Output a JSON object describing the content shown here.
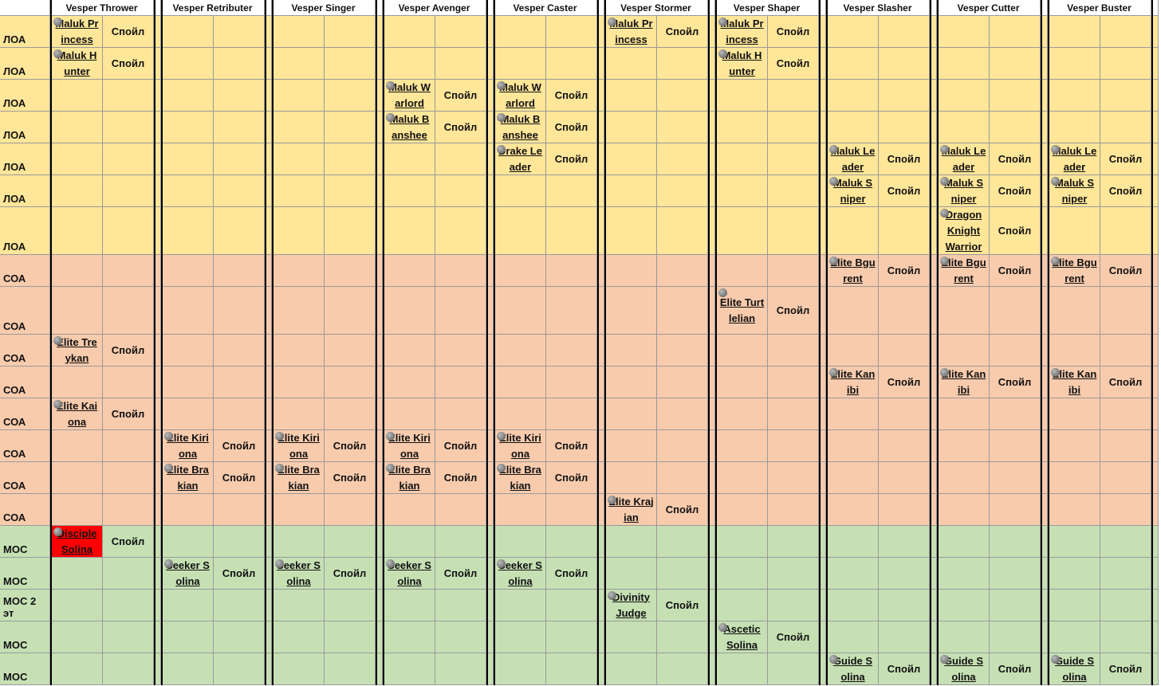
{
  "columns": [
    "Vesper Thrower",
    "Vesper Retributer",
    "Vesper Singer",
    "Vesper Avenger",
    "Vesper Caster",
    "Vesper Stormer",
    "Vesper Shaper",
    "Vesper Slasher",
    "Vesper Cutter",
    "Vesper Buster"
  ],
  "rows": [
    {
      "zone": "ЛОА",
      "color": "#ffe699",
      "cells": [
        {
          "mob": "Maluk Princess",
          "spoil": "Спойл"
        },
        null,
        null,
        null,
        null,
        {
          "mob": "Maluk Princess",
          "spoil": "Спойл"
        },
        {
          "mob": "Maluk Princess",
          "spoil": "Спойл"
        },
        null,
        null,
        null
      ]
    },
    {
      "zone": "ЛОА",
      "color": "#ffe699",
      "cells": [
        {
          "mob": "Maluk Hunter",
          "spoil": "Спойл"
        },
        null,
        null,
        null,
        null,
        null,
        {
          "mob": "Maluk Hunter",
          "spoil": "Спойл"
        },
        null,
        null,
        null
      ]
    },
    {
      "zone": "ЛОА",
      "color": "#ffe699",
      "cells": [
        null,
        null,
        null,
        {
          "mob": "Maluk Warlord",
          "spoil": "Спойл"
        },
        {
          "mob": "Maluk Warlord",
          "spoil": "Спойл"
        },
        null,
        null,
        null,
        null,
        null
      ]
    },
    {
      "zone": "ЛОА",
      "color": "#ffe699",
      "cells": [
        null,
        null,
        null,
        {
          "mob": "Maluk Banshee",
          "spoil": "Спойл"
        },
        {
          "mob": "Maluk Banshee",
          "spoil": "Спойл"
        },
        null,
        null,
        null,
        null,
        null
      ]
    },
    {
      "zone": "ЛОА",
      "color": "#ffe699",
      "cells": [
        null,
        null,
        null,
        null,
        {
          "mob": "Drake Leader",
          "spoil": "Спойл"
        },
        null,
        null,
        {
          "mob": "Maluk Leader",
          "spoil": "Спойл"
        },
        {
          "mob": "Maluk Leader",
          "spoil": "Спойл"
        },
        {
          "mob": "Maluk Leader",
          "spoil": "Спойл"
        }
      ]
    },
    {
      "zone": "ЛОА",
      "color": "#ffe699",
      "cells": [
        null,
        null,
        null,
        null,
        null,
        null,
        null,
        {
          "mob": "Maluk Sniper",
          "spoil": "Спойл"
        },
        {
          "mob": "Maluk Sniper",
          "spoil": "Спойл"
        },
        {
          "mob": "Maluk Sniper",
          "spoil": "Спойл"
        }
      ]
    },
    {
      "zone": "ЛОА",
      "color": "#ffe699",
      "cells": [
        null,
        null,
        null,
        null,
        null,
        null,
        null,
        null,
        {
          "mob": "Dragon Knight Warrior",
          "spoil": "Спойл"
        },
        null
      ]
    },
    {
      "zone": "СОА",
      "color": "#f8cbad",
      "cells": [
        null,
        null,
        null,
        null,
        null,
        null,
        null,
        {
          "mob": "Elite Bgurent",
          "spoil": "Спойл"
        },
        {
          "mob": "Elite Bgurent",
          "spoil": "Спойл"
        },
        {
          "mob": "Elite Bgurent",
          "spoil": "Спойл"
        }
      ]
    },
    {
      "zone": "СОА",
      "color": "#f8cbad",
      "cells": [
        null,
        null,
        null,
        null,
        null,
        null,
        {
          "mob": "Elite Turtlelian",
          "spoil": "Спойл"
        },
        null,
        null,
        null
      ]
    },
    {
      "zone": "СОА",
      "color": "#f8cbad",
      "cells": [
        {
          "mob": "Elite Treykan",
          "spoil": "Спойл"
        },
        null,
        null,
        null,
        null,
        null,
        null,
        null,
        null,
        null
      ]
    },
    {
      "zone": "СОА",
      "color": "#f8cbad",
      "cells": [
        null,
        null,
        null,
        null,
        null,
        null,
        null,
        {
          "mob": "Elite Kanibi",
          "spoil": "Спойл"
        },
        {
          "mob": "Elite Kanibi",
          "spoil": "Спойл"
        },
        {
          "mob": "Elite Kanibi",
          "spoil": "Спойл"
        }
      ]
    },
    {
      "zone": "СОА",
      "color": "#f8cbad",
      "cells": [
        {
          "mob": "Elite Kaiona",
          "spoil": "Спойл"
        },
        null,
        null,
        null,
        null,
        null,
        null,
        null,
        null,
        null
      ]
    },
    {
      "zone": "СОА",
      "color": "#f8cbad",
      "cells": [
        null,
        {
          "mob": "Elite Kiriona",
          "spoil": "Спойл"
        },
        {
          "mob": "Elite Kiriona",
          "spoil": "Спойл"
        },
        {
          "mob": "Elite Kiriona",
          "spoil": "Спойл"
        },
        {
          "mob": "Elite Kiriona",
          "spoil": "Спойл"
        },
        null,
        null,
        null,
        null,
        null
      ]
    },
    {
      "zone": "СОА",
      "color": "#f8cbad",
      "cells": [
        null,
        {
          "mob": "Elite Brakian",
          "spoil": "Спойл"
        },
        {
          "mob": "Elite Brakian",
          "spoil": "Спойл"
        },
        {
          "mob": "Elite Brakian",
          "spoil": "Спойл"
        },
        {
          "mob": "Elite Brakian",
          "spoil": "Спойл"
        },
        null,
        null,
        null,
        null,
        null
      ]
    },
    {
      "zone": "СОА",
      "color": "#f8cbad",
      "cells": [
        null,
        null,
        null,
        null,
        null,
        {
          "mob": "Elite Krajian",
          "spoil": "Спойл"
        },
        null,
        null,
        null,
        null
      ]
    },
    {
      "zone": "МОС",
      "color": "#c6e0b4",
      "cells": [
        {
          "mob": "Disciple Solina",
          "spoil": "Спойл",
          "highlight": "#ff0000"
        },
        null,
        null,
        null,
        null,
        null,
        null,
        null,
        null,
        null
      ]
    },
    {
      "zone": "МОС",
      "color": "#c6e0b4",
      "cells": [
        null,
        {
          "mob": "Seeker Solina",
          "spoil": "Спойл"
        },
        {
          "mob": "Seeker Solina",
          "spoil": "Спойл"
        },
        {
          "mob": "Seeker Solina",
          "spoil": "Спойл"
        },
        {
          "mob": "Seeker Solina",
          "spoil": "Спойл"
        },
        null,
        null,
        null,
        null,
        null
      ]
    },
    {
      "zone": "МОС 2 эт",
      "color": "#c6e0b4",
      "cells": [
        null,
        null,
        null,
        null,
        null,
        {
          "mob": "Divinity Judge",
          "spoil": "Спойл"
        },
        null,
        null,
        null,
        null
      ]
    },
    {
      "zone": "МОС",
      "color": "#c6e0b4",
      "cells": [
        null,
        null,
        null,
        null,
        null,
        null,
        {
          "mob": "Ascetic Solina",
          "spoil": "Спойл"
        },
        null,
        null,
        null
      ]
    },
    {
      "zone": "МОС",
      "color": "#c6e0b4",
      "cells": [
        null,
        null,
        null,
        null,
        null,
        null,
        null,
        {
          "mob": "Guide Solina",
          "spoil": "Спойл"
        },
        {
          "mob": "Guide Solina",
          "spoil": "Спойл"
        },
        {
          "mob": "Guide Solina",
          "spoil": "Спойл"
        }
      ]
    }
  ]
}
